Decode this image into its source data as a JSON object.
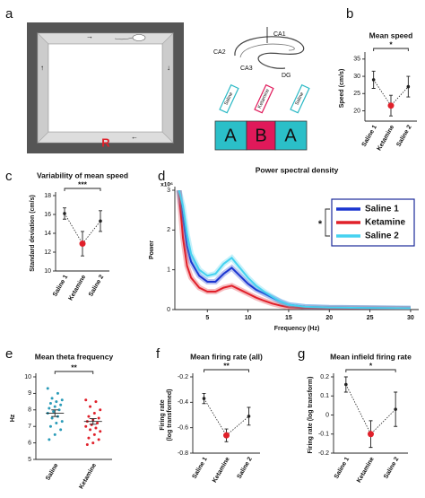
{
  "diagram": {
    "panel": "a",
    "marker": "R",
    "regions": [
      "CA1",
      "CA2",
      "CA3",
      "DG"
    ],
    "syringes": [
      "Saline",
      "Ketamine",
      "Saline"
    ],
    "phases": [
      "A",
      "B",
      "A"
    ]
  },
  "chart_data": [
    {
      "panel": "b",
      "type": "errorbar",
      "title": "Mean speed",
      "ylabel": [
        "Speed (cm/s)"
      ],
      "categories": [
        "Saline 1",
        "Ketamine",
        "Saline 2"
      ],
      "values": [
        29,
        21.5,
        27
      ],
      "errors": [
        2.5,
        3,
        3
      ],
      "colors": [
        "#222222",
        "#e0202a",
        "#222222"
      ],
      "ylim": [
        17,
        36
      ],
      "yticks": [
        20,
        25,
        30,
        35
      ],
      "annotation": "*"
    },
    {
      "panel": "c",
      "type": "errorbar",
      "title": "Variability of mean speed",
      "ylabel": [
        "Standard deviation (cm/s)"
      ],
      "categories": [
        "Saline 1",
        "Ketamine",
        "Saline 2"
      ],
      "values": [
        16.1,
        12.9,
        15.3
      ],
      "errors": [
        0.6,
        1.3,
        1.1
      ],
      "colors": [
        "#222222",
        "#e0202a",
        "#222222"
      ],
      "ylim": [
        10,
        18
      ],
      "yticks": [
        10,
        12,
        14,
        16,
        18
      ],
      "annotation": "***"
    },
    {
      "panel": "d",
      "type": "line",
      "title": "Power spectral density",
      "xlabel": "Frequency (Hz)",
      "ylabel": [
        "Power"
      ],
      "multiplier": "x10⁶",
      "annotation": "*",
      "legend": "upper right",
      "x": [
        1.5,
        2,
        2.5,
        3,
        4,
        5,
        6,
        7,
        8,
        9,
        10,
        11,
        12,
        13,
        14,
        15,
        17,
        20,
        25,
        30
      ],
      "series": [
        {
          "name": "Saline 1",
          "color": "#1a35d0",
          "values": [
            3.0,
            2.3,
            1.6,
            1.2,
            0.85,
            0.7,
            0.7,
            0.9,
            1.05,
            0.85,
            0.65,
            0.5,
            0.4,
            0.3,
            0.2,
            0.12,
            0.07,
            0.05,
            0.04,
            0.03
          ]
        },
        {
          "name": "Ketamine",
          "color": "#e0202a",
          "values": [
            3.0,
            1.8,
            1.1,
            0.8,
            0.55,
            0.45,
            0.45,
            0.55,
            0.6,
            0.5,
            0.4,
            0.3,
            0.22,
            0.15,
            0.1,
            0.06,
            0.04,
            0.03,
            0.03,
            0.02
          ]
        },
        {
          "name": "Saline 2",
          "color": "#45d2f0",
          "values": [
            3.0,
            2.6,
            1.9,
            1.4,
            1.0,
            0.85,
            0.9,
            1.15,
            1.3,
            1.05,
            0.8,
            0.6,
            0.45,
            0.32,
            0.2,
            0.12,
            0.07,
            0.05,
            0.04,
            0.03
          ]
        }
      ],
      "xlim": [
        1,
        31
      ],
      "xticks": [
        5,
        10,
        15,
        20,
        25,
        30
      ],
      "ylim": [
        0,
        3
      ],
      "yticks": [
        0,
        1,
        2,
        3
      ]
    },
    {
      "panel": "e",
      "type": "strip",
      "title": "Mean theta frequency",
      "ylabel": [
        "Hz"
      ],
      "categories": [
        "Saline",
        "Ketamine"
      ],
      "series": [
        {
          "name": "Saline",
          "color": "#2a9bb8",
          "values": [
            9.3,
            9.0,
            8.7,
            8.6,
            8.5,
            8.4,
            8.3,
            8.2,
            8.1,
            8.0,
            7.9,
            7.8,
            7.6,
            7.5,
            7.3,
            7.2,
            7.0,
            6.8,
            6.5,
            6.2
          ]
        },
        {
          "name": "Ketamine",
          "color": "#e0202a",
          "values": [
            8.6,
            8.5,
            8.2,
            8.0,
            7.8,
            7.6,
            7.5,
            7.4,
            7.3,
            7.2,
            7.1,
            7.0,
            6.9,
            6.8,
            6.7,
            6.5,
            6.3,
            6.2,
            6.0,
            5.9
          ]
        }
      ],
      "means": [
        7.8,
        7.3
      ],
      "errors": [
        0.2,
        0.17
      ],
      "ylim": [
        5,
        10
      ],
      "yticks": [
        5,
        6,
        7,
        8,
        9,
        10
      ],
      "annotation": "**"
    },
    {
      "panel": "f",
      "type": "errorbar",
      "title": "Mean firing rate (all)",
      "ylabel": [
        "Firing rate",
        "(log transformed)"
      ],
      "categories": [
        "Saline 1",
        "Ketamine",
        "Saline 2"
      ],
      "values": [
        -0.37,
        -0.66,
        -0.51
      ],
      "errors": [
        0.04,
        0.05,
        0.07
      ],
      "colors": [
        "#222222",
        "#e0202a",
        "#222222"
      ],
      "ylim": [
        -0.8,
        -0.2
      ],
      "yticks": [
        -0.8,
        -0.6,
        -0.4,
        -0.2
      ],
      "annotation": "**"
    },
    {
      "panel": "g",
      "type": "errorbar",
      "title": "Mean infield firing rate",
      "ylabel": [
        "Firing rate (log transform)"
      ],
      "categories": [
        "Saline 1",
        "Ketamine",
        "Saline 2"
      ],
      "values": [
        0.16,
        -0.1,
        0.03
      ],
      "errors": [
        0.04,
        0.07,
        0.09
      ],
      "colors": [
        "#222222",
        "#e0202a",
        "#222222"
      ],
      "ylim": [
        -0.2,
        0.2
      ],
      "yticks": [
        -0.2,
        -0.1,
        0,
        0.1,
        0.2
      ],
      "annotation": "*"
    }
  ]
}
